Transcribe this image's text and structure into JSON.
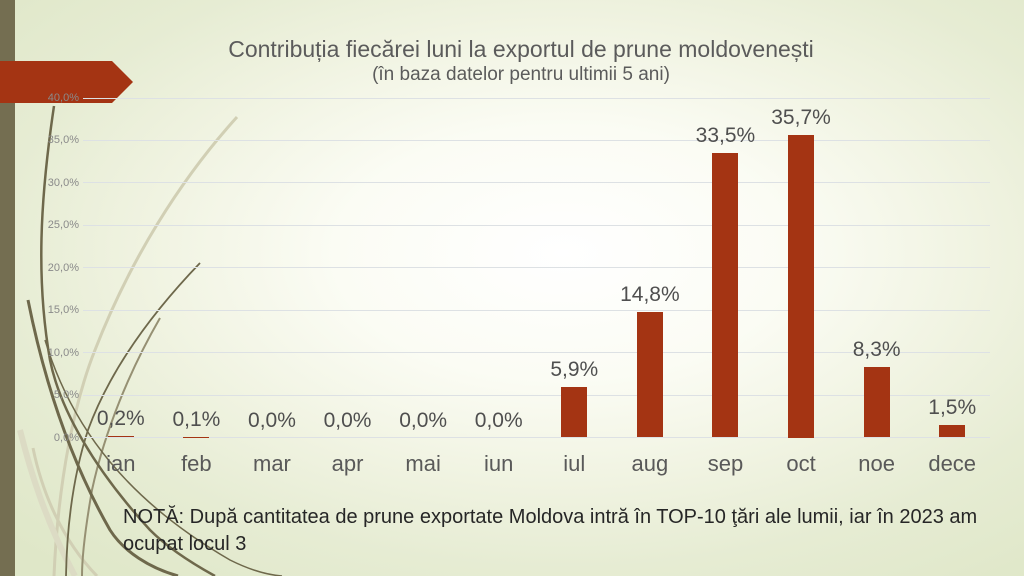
{
  "slide": {
    "title": "Contribuția fiecărei luni la exportul de prune moldovenești",
    "subtitle": "(în baza datelor pentru ultimii 5 ani)",
    "note": "NOTĂ: După cantitatea de prune exportate Moldova intră în TOP-10 ţări ale lumii, iar în 2023 am ocupat locul 3"
  },
  "chart_data": {
    "type": "bar",
    "title": "Contribuția fiecărei luni la exportul de prune moldovenești",
    "subtitle": "(în baza datelor pentru ultimii 5 ani)",
    "categories": [
      "ian",
      "feb",
      "mar",
      "apr",
      "mai",
      "iun",
      "iul",
      "aug",
      "sep",
      "oct",
      "noe",
      "dece"
    ],
    "values": [
      0.2,
      0.1,
      0.0,
      0.0,
      0.0,
      0.0,
      5.9,
      14.8,
      33.5,
      35.7,
      8.3,
      1.5
    ],
    "value_labels": [
      "0,2%",
      "0,1%",
      "0,0%",
      "0,0%",
      "0,0%",
      "0,0%",
      "5,9%",
      "14,8%",
      "33,5%",
      "35,7%",
      "8,3%",
      "1,5%"
    ],
    "y_ticks": [
      "40,0%",
      "35,0%",
      "30,0%",
      "25,0%",
      "20,0%",
      "15,0%",
      "10,0%",
      "5,0%",
      "0,0%"
    ],
    "ylim": [
      0,
      40
    ],
    "grid": true,
    "legend": "none",
    "xlabel": "",
    "ylabel": ""
  },
  "colors": {
    "accent_red": "#a43413",
    "left_bar_olive": "#746e51",
    "curve_dark": "#6e684b",
    "curve_medium": "#969073",
    "curve_pale": "#d1cfb4",
    "title_gray": "#5b5b5b",
    "data_label_gray": "#4f4f4f",
    "month_label_gray": "#595959",
    "tick_gray": "#8a8a8a",
    "gridline_gray": "#dde1e4",
    "note_dark": "#262626",
    "background_green": "#dfe7c8"
  }
}
